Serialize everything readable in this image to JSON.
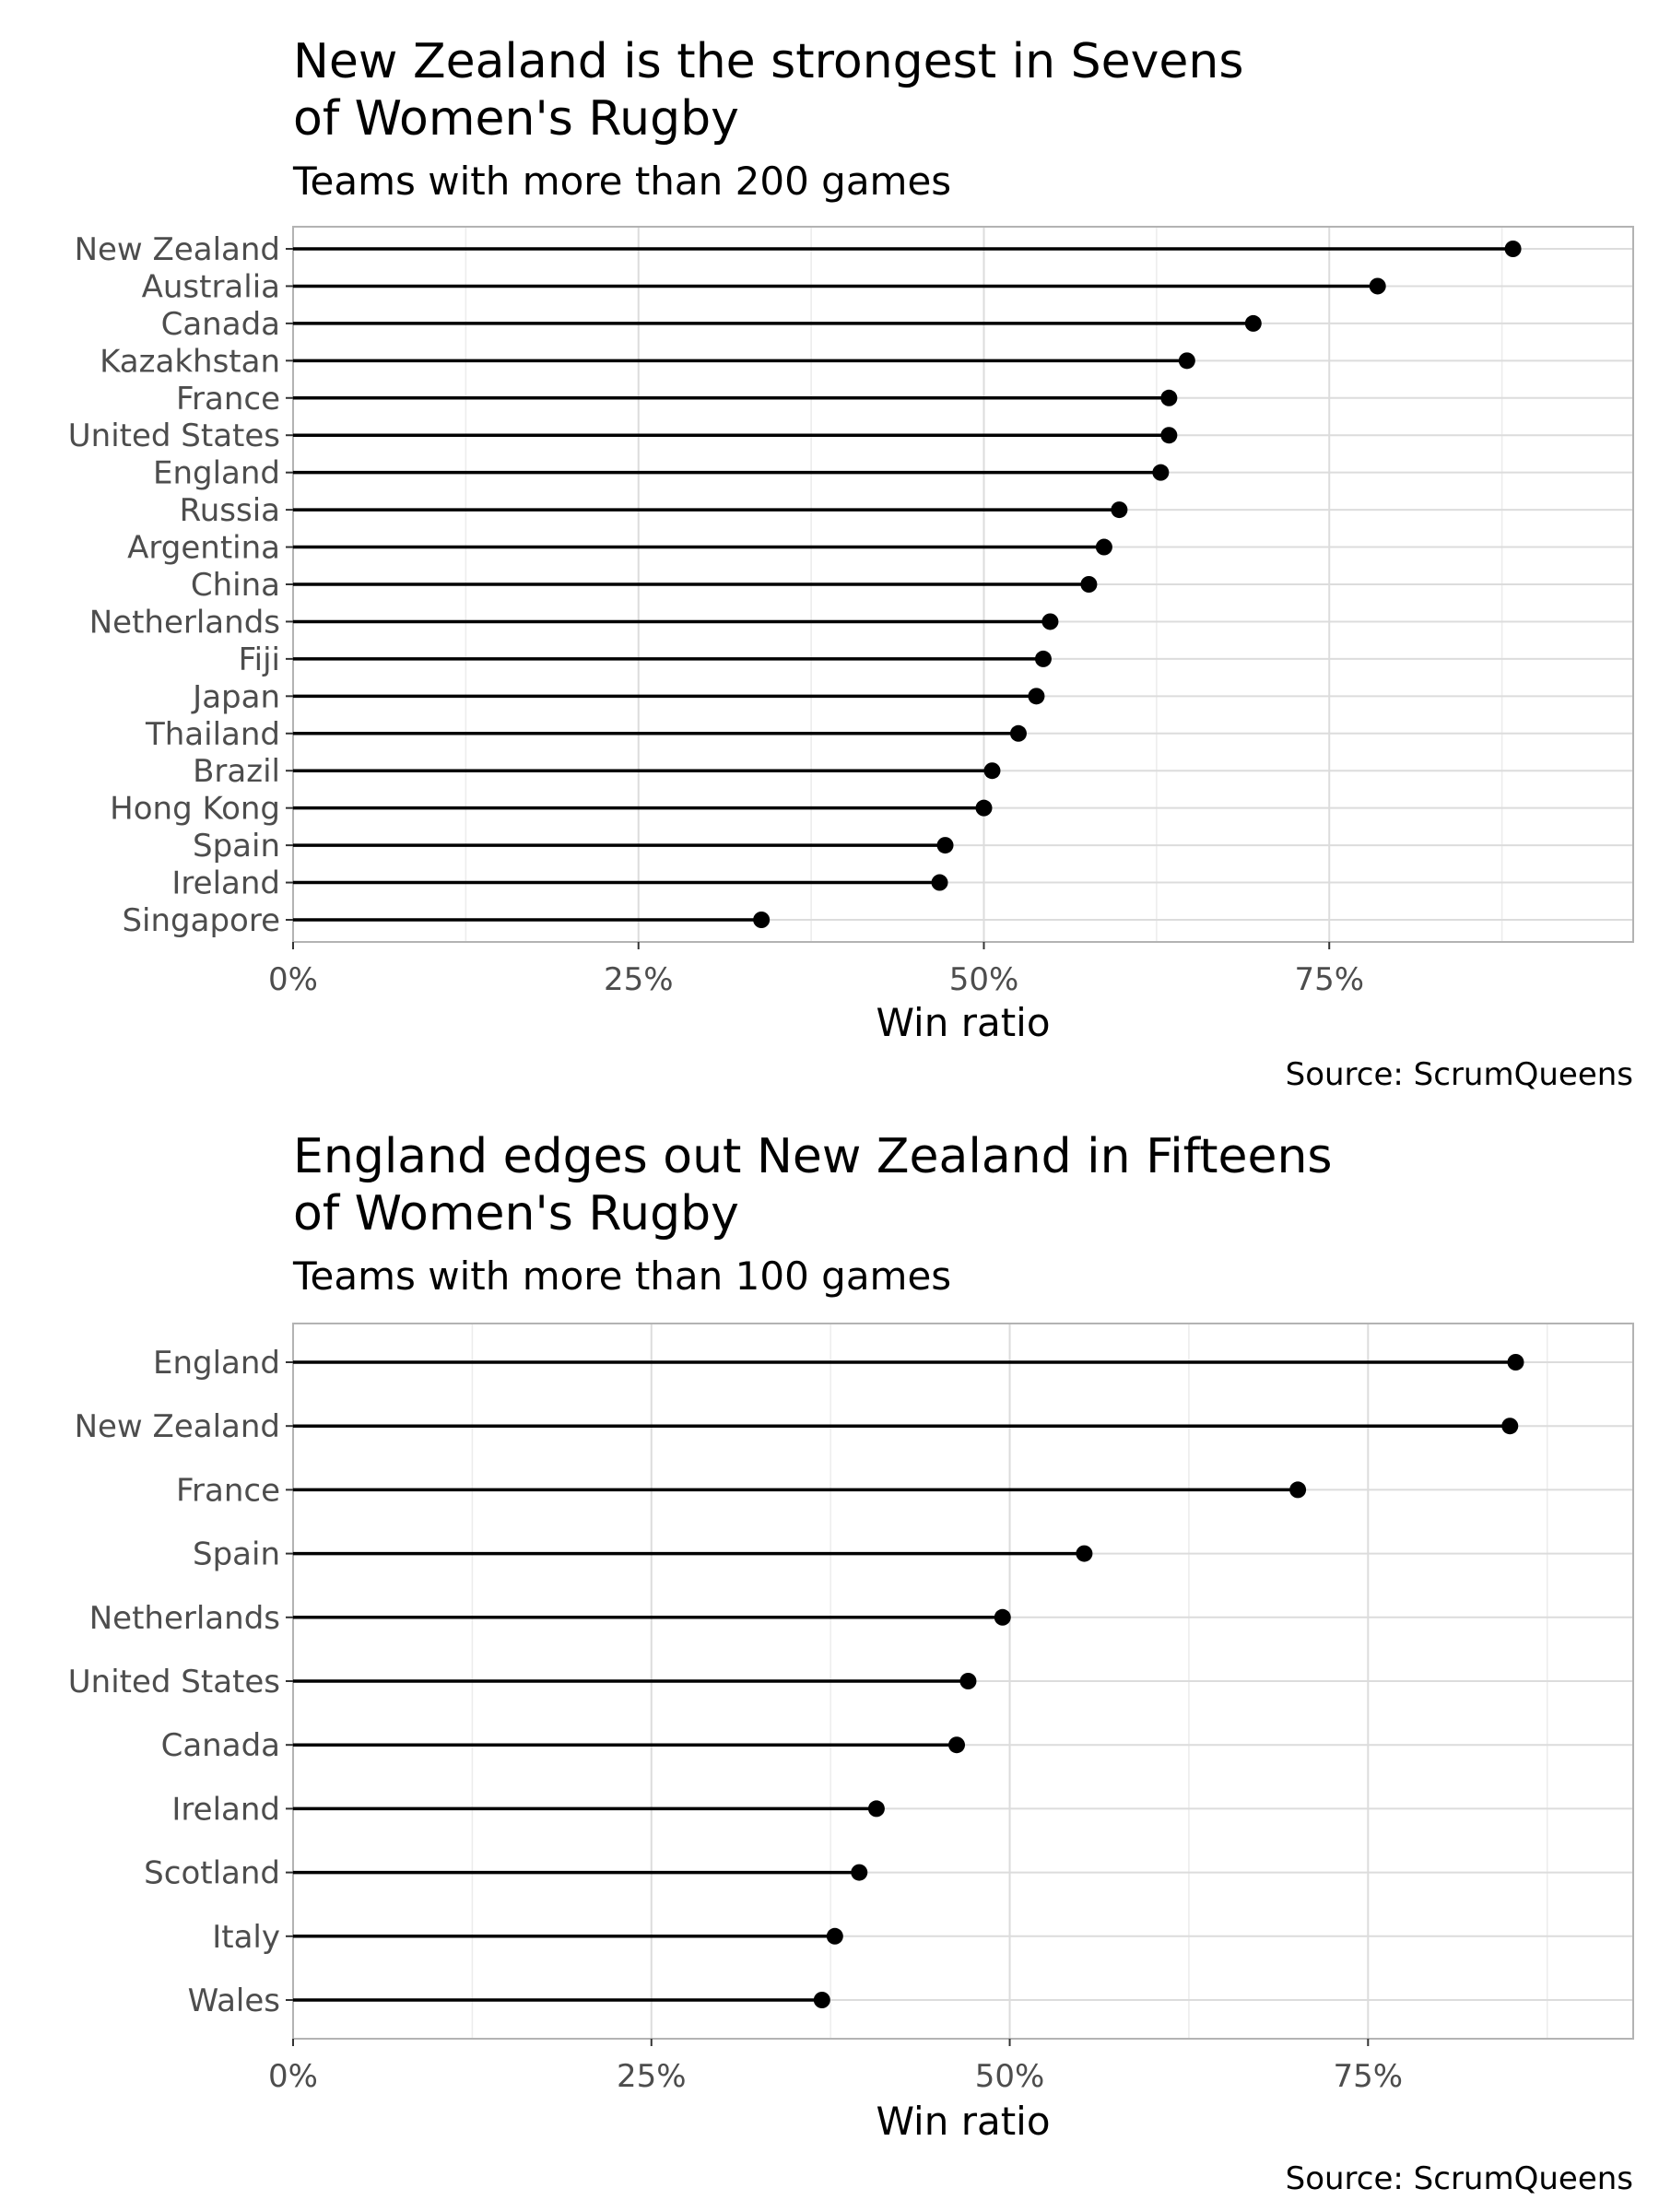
{
  "chart_data": [
    {
      "type": "lollipop",
      "title_lines": [
        "New Zealand is the strongest in Sevens",
        "of Women's Rugby"
      ],
      "subtitle": "Teams with more than 200 games",
      "xlabel": "Win ratio",
      "caption": "Source: ScrumQueens",
      "x_ticks": [
        "0%",
        "25%",
        "50%",
        "75%"
      ],
      "xlim": [
        0,
        0.97
      ],
      "grid": true,
      "categories": [
        "New Zealand",
        "Australia",
        "Canada",
        "Kazakhstan",
        "France",
        "United States",
        "England",
        "Russia",
        "Argentina",
        "China",
        "Netherlands",
        "Fiji",
        "Japan",
        "Thailand",
        "Brazil",
        "Hong Kong",
        "Spain",
        "Ireland",
        "Singapore"
      ],
      "values": [
        0.883,
        0.785,
        0.695,
        0.647,
        0.634,
        0.634,
        0.628,
        0.598,
        0.587,
        0.576,
        0.548,
        0.543,
        0.538,
        0.525,
        0.506,
        0.5,
        0.472,
        0.468,
        0.339
      ]
    },
    {
      "type": "lollipop",
      "title_lines": [
        "England edges out New Zealand in Fifteens",
        "of Women's Rugby"
      ],
      "subtitle": "Teams with more than 100 games",
      "xlabel": "Win ratio",
      "caption": "Source: ScrumQueens",
      "x_ticks": [
        "0%",
        "25%",
        "50%",
        "75%"
      ],
      "xlim": [
        0,
        0.935
      ],
      "grid": true,
      "categories": [
        "England",
        "New Zealand",
        "France",
        "Spain",
        "Netherlands",
        "United States",
        "Canada",
        "Ireland",
        "Scotland",
        "Italy",
        "Wales"
      ],
      "values": [
        0.853,
        0.849,
        0.701,
        0.552,
        0.495,
        0.471,
        0.463,
        0.407,
        0.395,
        0.378,
        0.369
      ]
    }
  ]
}
